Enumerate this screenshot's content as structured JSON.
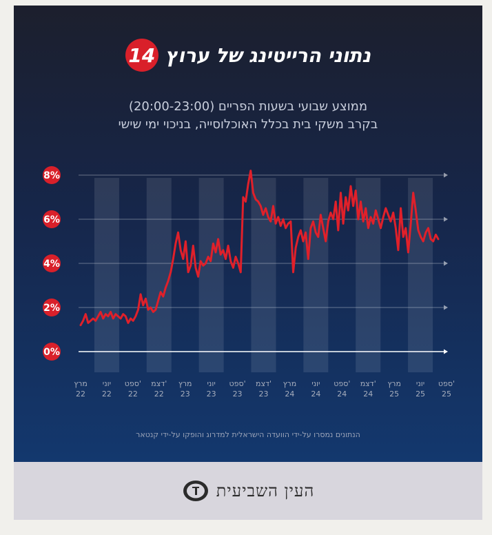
{
  "header": {
    "title": "נתוני הרייטינג של ערוץ",
    "badge": "14"
  },
  "subtitle": {
    "line1": "ממוצע שבועי בשעות הפריים (20:00-23:00)",
    "line2": "בקרב משקי בית בכלל האוכלוסייה, בניכוי ימי שישי"
  },
  "source_note": "הנתונים נמסרו על-ידי הוועדה הישראלית למדרוג והופקו על-ידי קנטאר",
  "footer": {
    "logo_text": "העין השביעית",
    "logo_icon": "eye-logo-icon"
  },
  "colors": {
    "line": "#e0202a",
    "badge": "#d9202a",
    "background_top": "#1c1f2d",
    "background_bottom": "#13386e"
  },
  "chart_data": {
    "type": "line",
    "title": "נתוני הרייטינג של ערוץ 14",
    "ylabel": "",
    "xlabel": "",
    "ylim": [
      0,
      8
    ],
    "yticks": [
      "0%",
      "2%",
      "4%",
      "6%",
      "8%"
    ],
    "x_ticks": [
      {
        "m": "מרץ",
        "y": "22"
      },
      {
        "m": "יוני",
        "y": "22"
      },
      {
        "m": "ספט'",
        "y": "22"
      },
      {
        "m": "דצמ'",
        "y": "22"
      },
      {
        "m": "מרץ",
        "y": "23"
      },
      {
        "m": "יוני",
        "y": "23"
      },
      {
        "m": "ספט'",
        "y": "23"
      },
      {
        "m": "דצמ'",
        "y": "23"
      },
      {
        "m": "מרץ",
        "y": "24"
      },
      {
        "m": "יוני",
        "y": "24"
      },
      {
        "m": "ספט'",
        "y": "24"
      },
      {
        "m": "דצמ'",
        "y": "24"
      },
      {
        "m": "מרץ",
        "y": "25"
      },
      {
        "m": "יוני",
        "y": "25"
      },
      {
        "m": "ספט'",
        "y": "25"
      }
    ],
    "x_range": [
      "2022-03",
      "2025-09"
    ],
    "grid": true,
    "series": [
      {
        "values": [
          1.2,
          1.4,
          1.7,
          1.3,
          1.4,
          1.5,
          1.4,
          1.6,
          1.8,
          1.5,
          1.7,
          1.6,
          1.8,
          1.5,
          1.7,
          1.6,
          1.5,
          1.7,
          1.6,
          1.3,
          1.5,
          1.4,
          1.6,
          1.9,
          2.6,
          2.1,
          2.4,
          1.9,
          2.0,
          1.8,
          1.9,
          2.3,
          2.7,
          2.5,
          2.9,
          3.2,
          3.6,
          4.2,
          4.9,
          5.4,
          4.6,
          4.2,
          5.0,
          3.6,
          3.9,
          4.8,
          3.8,
          3.4,
          4.1,
          3.9,
          4.0,
          4.3,
          4.1,
          4.9,
          4.5,
          5.1,
          4.4,
          4.6,
          4.2,
          4.8,
          4.1,
          3.8,
          4.3,
          4.0,
          3.6,
          7.0,
          6.8,
          7.6,
          8.2,
          7.2,
          6.9,
          6.8,
          6.6,
          6.2,
          6.5,
          6.1,
          5.9,
          6.6,
          5.8,
          6.1,
          5.7,
          6.0,
          5.6,
          5.8,
          5.9,
          3.6,
          4.7,
          5.2,
          5.5,
          5.0,
          5.4,
          4.2,
          5.6,
          5.9,
          5.4,
          5.2,
          6.2,
          5.6,
          5.0,
          5.9,
          6.3,
          6.0,
          6.8,
          5.5,
          7.2,
          5.8,
          7.0,
          6.4,
          7.5,
          6.6,
          7.3,
          6.0,
          6.8,
          5.9,
          6.5,
          5.6,
          6.1,
          5.8,
          6.4,
          6.0,
          5.6,
          6.1,
          6.5,
          6.2,
          5.9,
          6.3,
          5.6,
          4.6,
          6.5,
          5.2,
          5.6,
          4.5,
          5.8,
          7.2,
          6.4,
          5.5,
          5.2,
          5.0,
          5.4,
          5.6,
          5.1,
          5.0,
          5.3,
          5.1
        ]
      }
    ]
  }
}
